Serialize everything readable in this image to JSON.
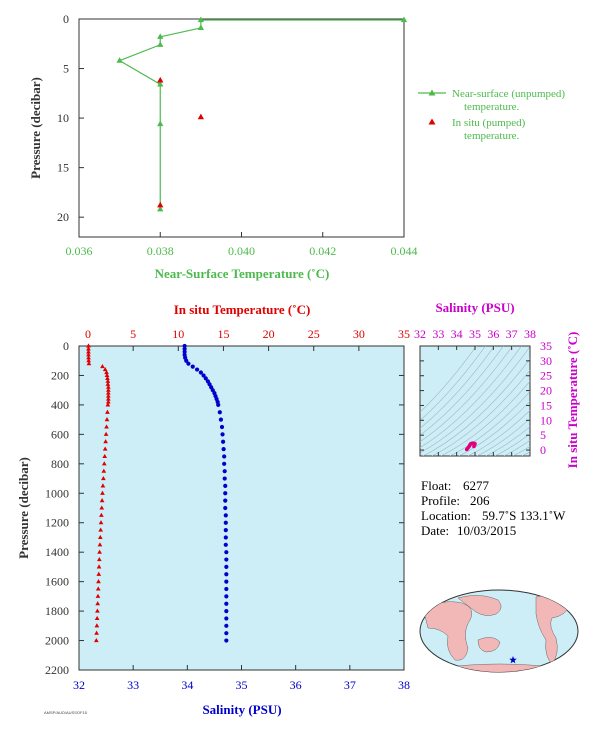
{
  "colors": {
    "green": "#4dba4d",
    "red": "#e00000",
    "blue": "#0000cc",
    "magenta": "#cc00cc",
    "axis_dark": "#333333",
    "plot_bg": "#cdeef7"
  },
  "chart_data": [
    {
      "type": "line",
      "xlabel": "Near-Surface Temperature (˚C)",
      "ylabel": "Pressure (decibar)",
      "xlim": [
        0.036,
        0.044
      ],
      "ylim": [
        22,
        0
      ],
      "xticks": [
        "0.036",
        "0.038",
        "0.040",
        "0.042",
        "0.044"
      ],
      "xtick_values": [
        0.036,
        0.038,
        0.04,
        0.042,
        0.044
      ],
      "yticks": [
        "0",
        "5",
        "10",
        "15",
        "20"
      ],
      "ytick_values": [
        0,
        5,
        10,
        15,
        20
      ],
      "legend_position": "right",
      "series": [
        {
          "name": "Near-surface (unpumped) temperature.",
          "color": "#4dba4d",
          "marker": "triangle",
          "x": [
            0.044,
            0.039,
            0.039,
            0.038,
            0.038,
            0.037,
            0.038,
            0.038,
            0.038
          ],
          "y": [
            0.1,
            0.1,
            0.9,
            1.8,
            2.6,
            4.2,
            6.6,
            10.6,
            19.2
          ]
        },
        {
          "name": "In situ (pumped) temperature.",
          "color": "#e00000",
          "marker": "triangle",
          "x": [
            0.038,
            0.039,
            0.038
          ],
          "y": [
            6.2,
            9.9,
            18.8
          ]
        }
      ]
    },
    {
      "type": "scatter",
      "ylabel": "Pressure (decibar)",
      "ylim": [
        2200,
        0
      ],
      "yticks": [
        "0",
        "200",
        "400",
        "600",
        "800",
        "1000",
        "1200",
        "1400",
        "1600",
        "1800",
        "2000",
        "2200"
      ],
      "ytick_values": [
        0,
        200,
        400,
        600,
        800,
        1000,
        1200,
        1400,
        1600,
        1800,
        2000,
        2200
      ],
      "top_axis": {
        "label": "In situ Temperature (˚C)",
        "lim": [
          -1,
          35
        ],
        "ticks": [
          "0",
          "5",
          "10",
          "15",
          "20",
          "25",
          "30",
          "35"
        ],
        "tick_values": [
          0,
          5,
          10,
          15,
          20,
          25,
          30,
          35
        ]
      },
      "bottom_axis": {
        "label": "Salinity (PSU)",
        "lim": [
          32,
          38
        ],
        "ticks": [
          "32",
          "33",
          "34",
          "35",
          "36",
          "37",
          "38"
        ],
        "tick_values": [
          32,
          33,
          34,
          35,
          36,
          37,
          38
        ]
      },
      "temperature": {
        "color": "#e00000",
        "marker": "triangle",
        "pressure": [
          0,
          20,
          40,
          60,
          80,
          100,
          120,
          140,
          160,
          180,
          200,
          220,
          240,
          260,
          280,
          300,
          320,
          340,
          360,
          380,
          400,
          450,
          500,
          550,
          600,
          650,
          700,
          750,
          800,
          850,
          900,
          950,
          1000,
          1050,
          1100,
          1150,
          1200,
          1250,
          1300,
          1350,
          1400,
          1450,
          1500,
          1550,
          1600,
          1650,
          1700,
          1750,
          1800,
          1850,
          1900,
          1950,
          2000
        ],
        "value": [
          0.05,
          0.05,
          0.05,
          0.05,
          0.06,
          0.07,
          0.1,
          1.6,
          1.9,
          2.05,
          2.1,
          2.15,
          2.2,
          2.2,
          2.25,
          2.25,
          2.25,
          2.25,
          2.25,
          2.25,
          2.2,
          2.15,
          2.1,
          2.05,
          2.0,
          1.95,
          1.9,
          1.85,
          1.8,
          1.75,
          1.7,
          1.65,
          1.6,
          1.56,
          1.52,
          1.48,
          1.44,
          1.4,
          1.36,
          1.32,
          1.28,
          1.25,
          1.22,
          1.19,
          1.16,
          1.13,
          1.1,
          1.07,
          1.04,
          1.01,
          0.98,
          0.95,
          0.92
        ]
      },
      "salinity": {
        "color": "#0000cc",
        "marker": "circle",
        "pressure": [
          0,
          20,
          40,
          60,
          80,
          100,
          120,
          140,
          160,
          180,
          200,
          220,
          240,
          260,
          280,
          300,
          320,
          340,
          360,
          380,
          400,
          450,
          500,
          550,
          600,
          650,
          700,
          750,
          800,
          850,
          900,
          950,
          1000,
          1050,
          1100,
          1150,
          1200,
          1250,
          1300,
          1350,
          1400,
          1450,
          1500,
          1550,
          1600,
          1650,
          1700,
          1750,
          1800,
          1850,
          1900,
          1950,
          2000
        ],
        "value": [
          33.95,
          33.95,
          33.95,
          33.95,
          33.96,
          33.98,
          34.02,
          34.1,
          34.18,
          34.25,
          34.3,
          34.34,
          34.38,
          34.41,
          34.44,
          34.47,
          34.5,
          34.52,
          34.54,
          34.56,
          34.57,
          34.6,
          34.62,
          34.64,
          34.65,
          34.66,
          34.67,
          34.68,
          34.68,
          34.69,
          34.69,
          34.7,
          34.7,
          34.7,
          34.7,
          34.71,
          34.71,
          34.71,
          34.71,
          34.71,
          34.72,
          34.72,
          34.72,
          34.72,
          34.72,
          34.72,
          34.72,
          34.72,
          34.72,
          34.72,
          34.72,
          34.72,
          34.72
        ]
      }
    },
    {
      "type": "scatter",
      "xlabel": "Salinity (PSU)",
      "ylabel": "In situ Temperature (˚C)",
      "xlim": [
        32,
        38
      ],
      "ylim": [
        -2,
        35
      ],
      "xticks": [
        "32",
        "33",
        "34",
        "35",
        "36",
        "37",
        "38"
      ],
      "xtick_values": [
        32,
        33,
        34,
        35,
        36,
        37,
        38
      ],
      "yticks": [
        "0",
        "5",
        "10",
        "15",
        "20",
        "25",
        "30",
        "35"
      ],
      "ytick_values": [
        0,
        5,
        10,
        15,
        20,
        25,
        30,
        35
      ],
      "color": "#e0007a",
      "salinity": [
        34.55,
        34.6,
        34.65,
        34.7,
        34.72,
        34.75,
        34.8,
        34.85,
        34.9,
        34.95,
        34.98,
        35.0,
        34.98,
        34.94
      ],
      "temperature": [
        0.2,
        0.6,
        1.0,
        1.4,
        1.7,
        2.0,
        2.2,
        2.3,
        2.3,
        2.25,
        2.2,
        2.1,
        1.7,
        1.2
      ]
    }
  ],
  "info": {
    "float_label": "Float:",
    "float_value": "6277",
    "profile_label": "Profile:",
    "profile_value": "206",
    "location_label": "Location:",
    "location_value": "59.7˚S  133.1˚W",
    "date_label": "Date:",
    "date_value": "10/03/2015"
  },
  "map": {
    "marker_icon": "star-icon",
    "marker_color": "#0000cc"
  },
  "footer_code": "AMSP/AUD/AUSSOF15"
}
